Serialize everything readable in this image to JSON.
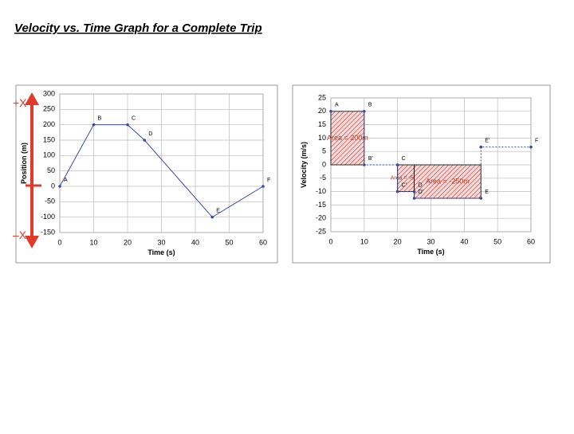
{
  "title": "Velocity vs. Time Graph for a Complete Trip",
  "chart_data": [
    {
      "type": "line",
      "ylabel": "Position (m)",
      "xlabel": "Time (s)",
      "x": [
        0,
        10,
        20,
        25,
        45,
        60
      ],
      "series": [
        {
          "color": "#3a4aa8",
          "values": [
            0,
            200,
            200,
            150,
            -100,
            0
          ]
        }
      ],
      "point_labels": [
        "A",
        "B",
        "C",
        "D",
        "E",
        "F"
      ],
      "xlim": [
        0,
        60
      ],
      "xticks": [
        0,
        10,
        20,
        30,
        40,
        50,
        60
      ],
      "ylim": [
        -150,
        300
      ],
      "yticks": [
        -150,
        -100,
        -50,
        0,
        50,
        100,
        150,
        200,
        250,
        300
      ],
      "grid": true,
      "annotations": [
        "+X",
        "–X"
      ]
    },
    {
      "type": "line",
      "ylabel": "Velocity (m/s)",
      "xlabel": "Time (s)",
      "x": [
        0,
        10,
        10,
        20,
        20,
        25,
        25,
        45,
        45,
        60
      ],
      "series": [
        {
          "color": "#3a4aa8",
          "values": [
            20,
            20,
            0,
            0,
            -10,
            -10,
            -12.5,
            -12.5,
            6.67,
            6.67
          ]
        }
      ],
      "point_labels": [
        "A",
        "B",
        "B'",
        "C",
        "C'",
        "D",
        "D'",
        "E",
        "E'",
        "F"
      ],
      "areas": [
        {
          "label": "Area = 200m",
          "x": [
            0,
            10
          ],
          "value": 20
        },
        {
          "label": "Area = -50m",
          "x": [
            20,
            25
          ],
          "value": -10
        },
        {
          "label": "Area = -250m",
          "x": [
            25,
            45
          ],
          "value": -12.5
        }
      ],
      "xlim": [
        0,
        60
      ],
      "xticks": [
        0,
        10,
        20,
        30,
        40,
        50,
        60
      ],
      "ylim": [
        -25,
        25
      ],
      "yticks": [
        -25,
        -20,
        -15,
        -10,
        -5,
        0,
        5,
        10,
        15,
        20,
        25
      ],
      "grid": true
    }
  ]
}
